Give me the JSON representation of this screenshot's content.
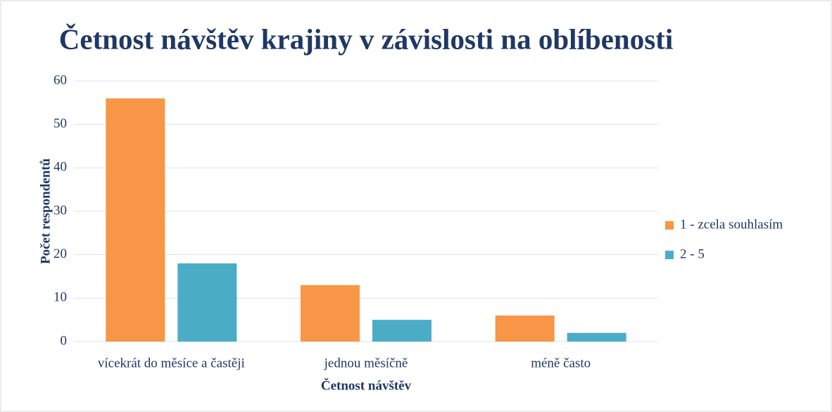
{
  "chart_data": {
    "type": "bar",
    "title": "Četnost návštěv krajiny v závislosti na oblíbenosti",
    "x_label": "Četnost návštěv",
    "y_label": "Počet respondentů",
    "categories": [
      "vícekrát do měsíce a častěji",
      "jednou měsíčně",
      "méně často"
    ],
    "series": [
      {
        "name": "1 - zcela souhlasím",
        "color": "#f79646",
        "values": [
          56,
          13,
          6
        ]
      },
      {
        "name": "2 - 5",
        "color": "#4bacc6",
        "values": [
          18,
          5,
          2
        ]
      }
    ],
    "ylim": [
      0,
      60
    ],
    "yticks": [
      0,
      10,
      20,
      30,
      40,
      50,
      60
    ],
    "grid": true,
    "legend": "right"
  }
}
